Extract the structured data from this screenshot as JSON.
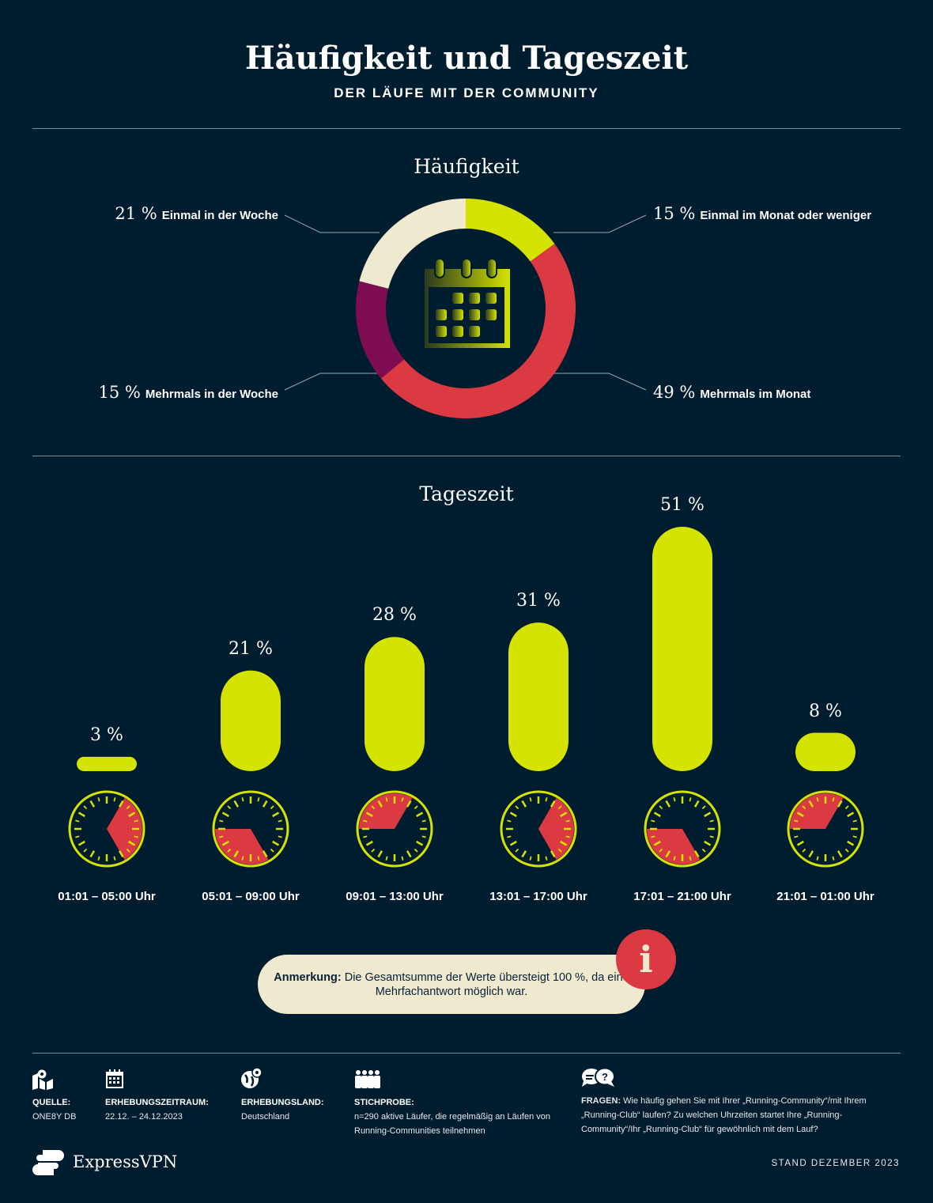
{
  "header": {
    "title": "Häufigkeit und Tageszeit",
    "subtitle": "DER LÄUFE MIT DER COMMUNITY"
  },
  "colors": {
    "background": "#001c2f",
    "yellow": "#d5e300",
    "red": "#dc3a43",
    "purple": "#7d0d50",
    "cream": "#efe9d0"
  },
  "chart_data": [
    {
      "type": "pie",
      "title": "Häufigkeit",
      "donut": true,
      "center_icon": "calendar-icon",
      "slices": [
        {
          "label": "Einmal im Monat oder weniger",
          "value": 15,
          "display": "15 %",
          "color": "#d5e300"
        },
        {
          "label": "Mehrmals im Monat",
          "value": 49,
          "display": "49 %",
          "color": "#dc3a43"
        },
        {
          "label": "Mehrmals in der Woche",
          "value": 15,
          "display": "15 %",
          "color": "#7d0d50"
        },
        {
          "label": "Einmal in der Woche",
          "value": 21,
          "display": "21 %",
          "color": "#efe9d0"
        }
      ]
    },
    {
      "type": "bar",
      "title": "Tageszeit",
      "ylim": [
        0,
        51
      ],
      "categories": [
        "01:01 – 05:00 Uhr",
        "05:01 – 09:00 Uhr",
        "09:01 – 13:00 Uhr",
        "13:01 – 17:00 Uhr",
        "17:01 – 21:00 Uhr",
        "21:01 – 01:00 Uhr"
      ],
      "values": [
        3,
        21,
        28,
        31,
        51,
        8
      ],
      "labels": [
        "3 %",
        "21 %",
        "28 %",
        "31 %",
        "51 %",
        "8 %"
      ],
      "clock_ranges_hours": [
        [
          1,
          5
        ],
        [
          5,
          9
        ],
        [
          9,
          13
        ],
        [
          13,
          17
        ],
        [
          17,
          21
        ],
        [
          21,
          25
        ]
      ],
      "color": "#d5e300"
    }
  ],
  "note": {
    "bold": "Anmerkung:",
    "text": " Die Gesamtsumme der Werte übersteigt 100 %, da eine Mehrfachantwort möglich war.",
    "icon": "info-icon",
    "icon_text": "i"
  },
  "footer": {
    "items": [
      {
        "icon": "map-pin-icon",
        "label": "QUELLE:",
        "text": "ONE8Y DB"
      },
      {
        "icon": "calendar-icon",
        "label": "ERHEBUNGSZEITRAUM:",
        "text": "22.12. – 24.12.2023"
      },
      {
        "icon": "globe-pin-icon",
        "label": "ERHEBUNGSLAND:",
        "text": "Deutschland"
      },
      {
        "icon": "people-icon",
        "label": "STICHPROBE:",
        "text": "n=290 aktive Läufer, die regelmäßig an Läufen von Running-Communities teilnehmen"
      }
    ],
    "questions": {
      "icon": "chat-question-icon",
      "label": "FRAGEN:",
      "text": " Wie häufig gehen Sie mit Ihrer „Running-Community“/mit Ihrem „Running-Club“ laufen? Zu welchen Uhrzeiten startet Ihre „Running-Community“/Ihr „Running-Club“ für gewöhnlich mit dem Lauf?"
    },
    "brand": "ExpressVPN",
    "stand": "STAND DEZEMBER 2023"
  }
}
